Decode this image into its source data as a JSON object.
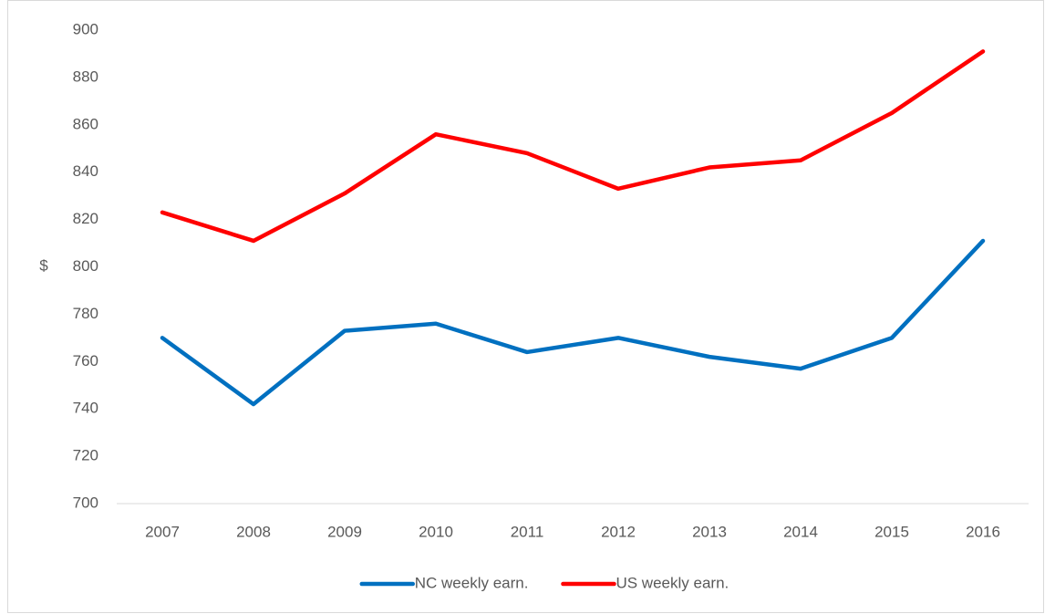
{
  "chart_data": {
    "type": "line",
    "y_label": "$",
    "categories": [
      "2007",
      "2008",
      "2009",
      "2010",
      "2011",
      "2012",
      "2013",
      "2014",
      "2015",
      "2016"
    ],
    "series": [
      {
        "name": "NC weekly earn.",
        "color": "#0070c0",
        "values": [
          770,
          742,
          773,
          776,
          764,
          770,
          762,
          757,
          770,
          811
        ]
      },
      {
        "name": "US weekly earn.",
        "color": "#ff0000",
        "values": [
          823,
          811,
          831,
          856,
          848,
          833,
          842,
          845,
          865,
          891
        ]
      }
    ],
    "ylim": [
      700,
      900
    ],
    "yticks": [
      700,
      720,
      740,
      760,
      780,
      800,
      820,
      840,
      860,
      880,
      900
    ],
    "grid": false,
    "legend": "bottom"
  }
}
